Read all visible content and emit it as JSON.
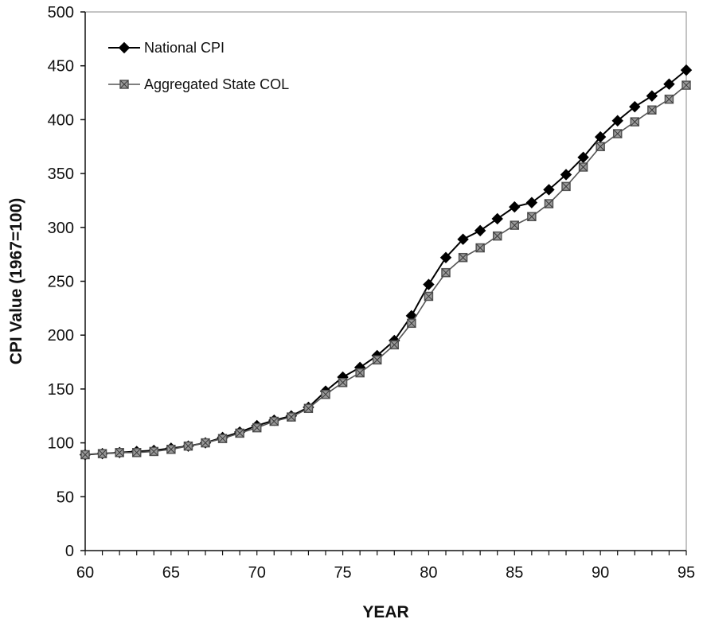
{
  "chart_data": {
    "type": "line",
    "xlabel": "YEAR",
    "ylabel": "CPI Value (1967=100)",
    "xlim": [
      60,
      95
    ],
    "ylim": [
      0,
      500
    ],
    "x_ticks": [
      60,
      65,
      70,
      75,
      80,
      85,
      90,
      95
    ],
    "y_ticks": [
      0,
      50,
      100,
      150,
      200,
      250,
      300,
      350,
      400,
      450,
      500
    ],
    "grid": false,
    "legend_position": "top-left",
    "x": [
      60,
      61,
      62,
      63,
      64,
      65,
      66,
      67,
      68,
      69,
      70,
      71,
      72,
      73,
      74,
      75,
      76,
      77,
      78,
      79,
      80,
      81,
      82,
      83,
      84,
      85,
      86,
      87,
      88,
      89,
      90,
      91,
      92,
      93,
      94,
      95
    ],
    "series": [
      {
        "name": "National CPI",
        "marker": "diamond",
        "color": "#000000",
        "values": [
          89,
          90,
          91,
          92,
          93,
          95,
          97,
          100,
          105,
          110,
          116,
          121,
          125,
          133,
          148,
          161,
          170,
          181,
          195,
          218,
          247,
          272,
          289,
          297,
          308,
          319,
          323,
          335,
          349,
          365,
          384,
          399,
          412,
          422,
          433,
          446
        ]
      },
      {
        "name": "Aggregated State COL",
        "marker": "square",
        "color": "#555555",
        "values": [
          89,
          90,
          91,
          91,
          92,
          94,
          97,
          100,
          104,
          109,
          114,
          120,
          124,
          132,
          145,
          156,
          165,
          177,
          191,
          211,
          236,
          258,
          272,
          281,
          292,
          302,
          310,
          322,
          338,
          356,
          375,
          387,
          398,
          409,
          419,
          432
        ]
      }
    ]
  }
}
